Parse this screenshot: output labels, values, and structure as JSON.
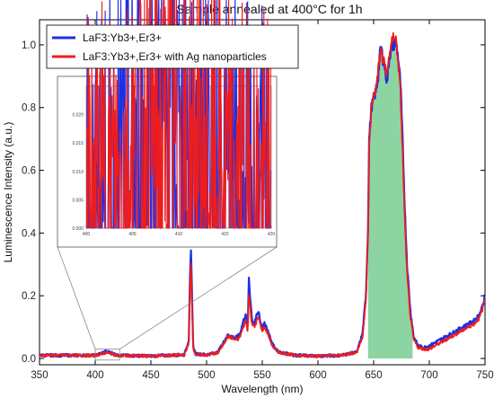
{
  "chart_data": {
    "type": "line",
    "title": "Sample annealed at 400°C for 1h",
    "xlabel": "Wavelength (nm)",
    "ylabel": "Luminescence Intensity (a.u.)",
    "xlim": [
      350,
      750
    ],
    "ylim": [
      -0.02,
      1.08
    ],
    "xticks": [
      "350",
      "400",
      "450",
      "500",
      "550",
      "600",
      "650",
      "700",
      "750"
    ],
    "yticks": [
      "0.0",
      "0.2",
      "0.4",
      "0.6",
      "0.8",
      "1.0"
    ],
    "legend_position": "top-left",
    "series": [
      {
        "name": "LaF3:Yb3+,Er3+",
        "color": "#1f2fe0",
        "x": [
          350,
          400,
          405,
          408,
          410,
          415,
          420,
          450,
          480,
          484,
          485,
          486,
          487,
          488,
          490,
          500,
          510,
          515,
          518,
          520,
          523,
          525,
          528,
          530,
          533,
          535,
          537,
          538,
          539,
          540,
          541,
          543,
          545,
          547,
          548,
          550,
          552,
          555,
          558,
          560,
          565,
          580,
          600,
          620,
          635,
          640,
          643,
          645,
          646,
          648,
          650,
          652,
          654,
          656,
          657,
          658,
          660,
          662,
          664,
          666,
          668,
          670,
          672,
          674,
          676,
          678,
          680,
          683,
          686,
          690,
          695,
          700,
          710,
          720,
          730,
          740,
          745,
          748,
          750
        ],
        "y": [
          0.01,
          0.01,
          0.016,
          0.02,
          0.022,
          0.018,
          0.01,
          0.008,
          0.012,
          0.06,
          0.24,
          0.34,
          0.2,
          0.04,
          0.015,
          0.012,
          0.02,
          0.05,
          0.07,
          0.075,
          0.07,
          0.065,
          0.07,
          0.08,
          0.12,
          0.14,
          0.1,
          0.26,
          0.2,
          0.16,
          0.12,
          0.11,
          0.14,
          0.15,
          0.12,
          0.1,
          0.11,
          0.09,
          0.06,
          0.04,
          0.02,
          0.01,
          0.008,
          0.01,
          0.02,
          0.08,
          0.2,
          0.42,
          0.7,
          0.8,
          0.83,
          0.85,
          0.9,
          0.98,
          0.99,
          0.96,
          0.93,
          0.88,
          0.96,
          0.99,
          1.0,
          1.01,
          0.96,
          0.88,
          0.7,
          0.48,
          0.3,
          0.15,
          0.07,
          0.04,
          0.035,
          0.04,
          0.06,
          0.08,
          0.1,
          0.12,
          0.14,
          0.17,
          0.2
        ]
      },
      {
        "name": "LaF3:Yb3+,Er3+ with Ag nanoparticles",
        "color": "#ee1c1c",
        "x": [
          350,
          400,
          405,
          408,
          410,
          415,
          420,
          450,
          480,
          484,
          485,
          486,
          487,
          488,
          490,
          500,
          510,
          515,
          518,
          520,
          523,
          525,
          528,
          530,
          533,
          535,
          537,
          538,
          539,
          540,
          541,
          543,
          545,
          547,
          548,
          550,
          552,
          555,
          558,
          560,
          565,
          580,
          600,
          620,
          635,
          640,
          643,
          645,
          646,
          648,
          650,
          652,
          654,
          656,
          657,
          658,
          660,
          662,
          664,
          666,
          668,
          670,
          672,
          674,
          676,
          678,
          680,
          683,
          686,
          690,
          695,
          700,
          710,
          720,
          730,
          740,
          745,
          748,
          750
        ],
        "y": [
          0.01,
          0.01,
          0.014,
          0.017,
          0.019,
          0.015,
          0.009,
          0.008,
          0.011,
          0.05,
          0.21,
          0.3,
          0.17,
          0.035,
          0.013,
          0.011,
          0.018,
          0.045,
          0.065,
          0.07,
          0.065,
          0.06,
          0.06,
          0.07,
          0.1,
          0.12,
          0.09,
          0.2,
          0.17,
          0.13,
          0.11,
          0.1,
          0.12,
          0.13,
          0.11,
          0.09,
          0.1,
          0.08,
          0.05,
          0.035,
          0.02,
          0.01,
          0.008,
          0.01,
          0.02,
          0.07,
          0.18,
          0.4,
          0.68,
          0.8,
          0.84,
          0.86,
          0.92,
          0.97,
          0.98,
          0.95,
          0.94,
          0.9,
          0.97,
          1.0,
          1.03,
          1.02,
          0.95,
          0.85,
          0.66,
          0.44,
          0.27,
          0.13,
          0.06,
          0.035,
          0.03,
          0.03,
          0.05,
          0.07,
          0.09,
          0.11,
          0.13,
          0.16,
          0.19
        ]
      }
    ],
    "shaded_region": {
      "x_start": 645,
      "x_end": 685,
      "color": "#8cd4a2"
    },
    "inset": {
      "x_range": [
        400,
        420
      ],
      "y_range": [
        0,
        0.025
      ],
      "xticks": [
        "400",
        "405",
        "410",
        "415",
        "420"
      ],
      "yticks": [
        "0.000",
        "0.005",
        "0.010",
        "0.015",
        "0.020"
      ],
      "zoom_box": {
        "x": [
          400,
          422
        ],
        "y": [
          -0.005,
          0.03
        ]
      },
      "series": [
        {
          "name": "LaF3:Yb3+,Er3+",
          "x": [
            400,
            402,
            404,
            406,
            407,
            408,
            409,
            410,
            411,
            412,
            414,
            416,
            418,
            420
          ],
          "y": [
            0.001,
            0.003,
            0.008,
            0.013,
            0.015,
            0.016,
            0.0155,
            0.0145,
            0.0125,
            0.011,
            0.0075,
            0.0045,
            0.002,
            0.0015
          ]
        },
        {
          "name": "LaF3:Yb3+,Er3+ with Ag nanoparticles",
          "x": [
            400,
            402,
            404,
            406,
            407,
            408,
            409,
            410,
            411,
            412,
            414,
            416,
            418,
            420
          ],
          "y": [
            0.001,
            0.0025,
            0.007,
            0.011,
            0.0125,
            0.013,
            0.0128,
            0.012,
            0.0105,
            0.009,
            0.0062,
            0.0038,
            0.0018,
            0.0013
          ]
        }
      ]
    }
  }
}
